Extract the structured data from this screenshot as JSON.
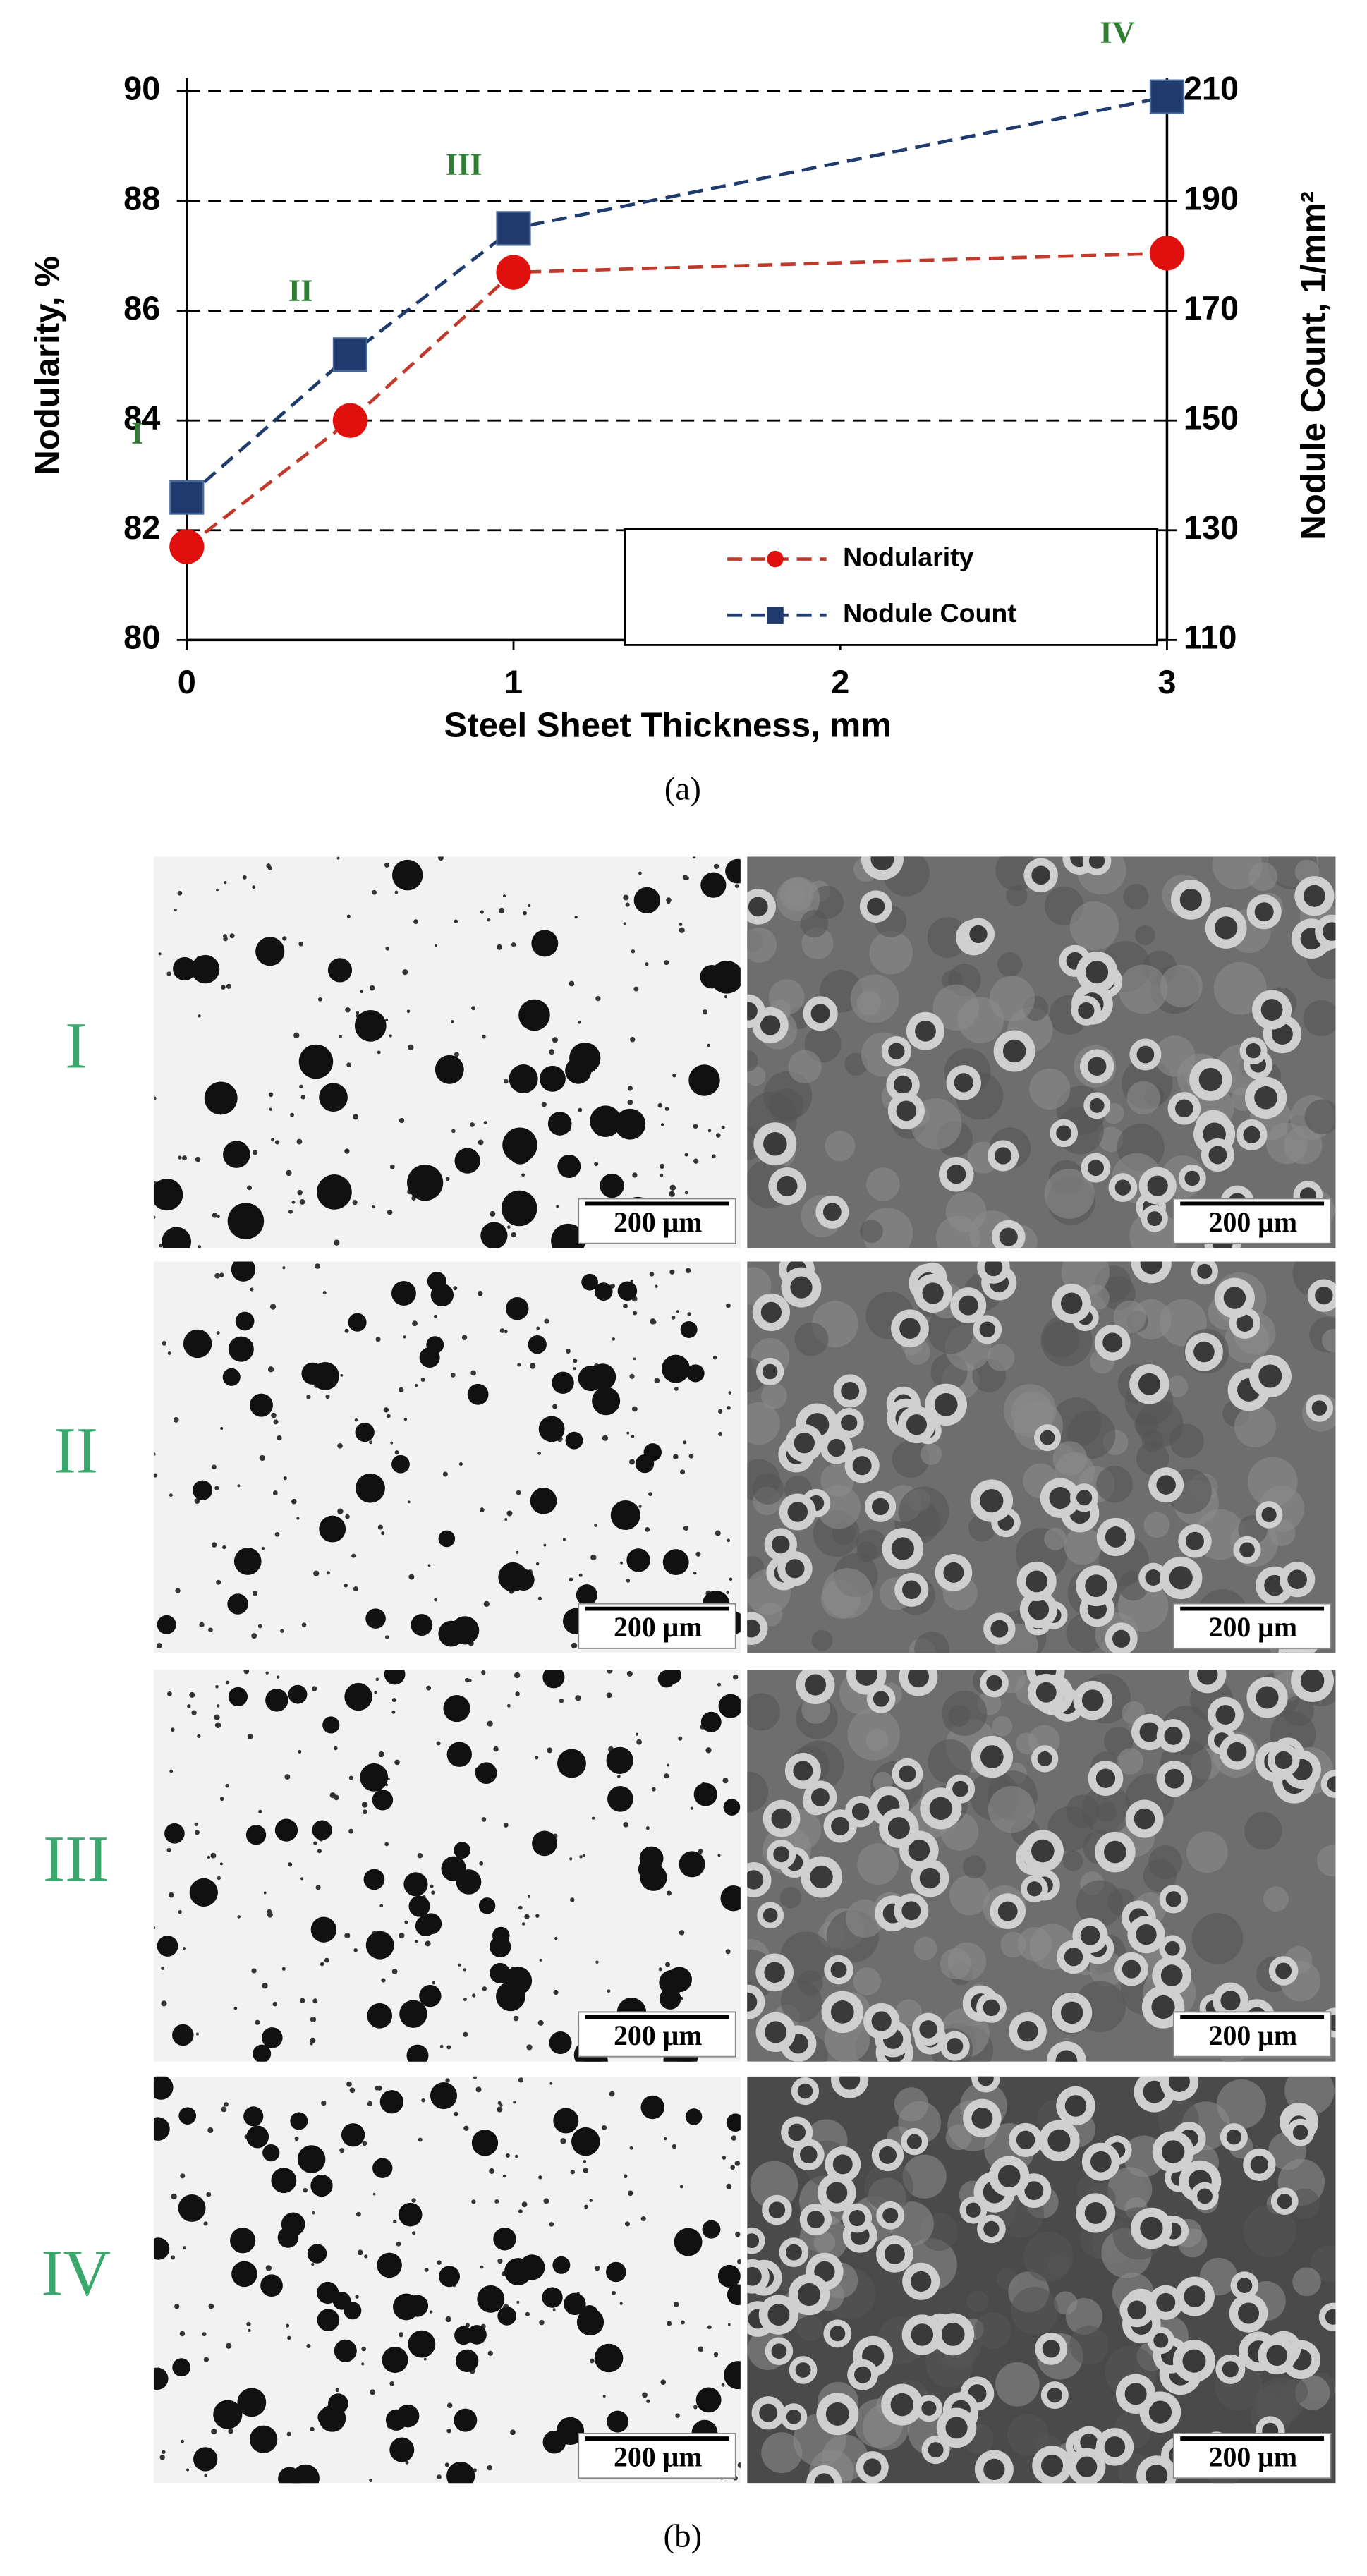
{
  "chart_data": {
    "type": "line",
    "x_label": "Steel Sheet Thickness, mm",
    "y_label": "Nodularity, %",
    "y2_label": "Nodule Count, 1/mm²",
    "x": [
      0,
      0.5,
      1,
      3
    ],
    "xlim": [
      0,
      3
    ],
    "xticks": [
      0,
      1,
      2,
      3
    ],
    "ylim": [
      80,
      90
    ],
    "yticks": [
      80,
      82,
      84,
      86,
      88,
      90
    ],
    "y2lim": [
      110,
      210
    ],
    "y2ticks": [
      110,
      130,
      150,
      170,
      190,
      210
    ],
    "grid": true,
    "legend": "lower right",
    "series": [
      {
        "name": "Nodularity",
        "color": "#e0100f",
        "line_color": "#c0392b",
        "marker": "circle",
        "values": [
          81.7,
          84,
          86.7,
          87.05
        ]
      },
      {
        "name": "Nodule Count",
        "color": "#1f3b6e",
        "line_color": "#1f3b6e",
        "marker": "square",
        "axis": "y2",
        "values": [
          136,
          162,
          185,
          209
        ]
      }
    ],
    "annotations": [
      "I",
      "II",
      "III",
      "IV"
    ]
  },
  "figure": {
    "caption_a": "(a)",
    "caption_b": "(b)",
    "micrographs": [
      {
        "label": "I",
        "scale_bars": [
          "200 μm",
          "200 μm"
        ]
      },
      {
        "label": "II",
        "scale_bars": [
          "200 μm",
          "200 μm"
        ]
      },
      {
        "label": "III",
        "scale_bars": [
          "200 μm",
          "200 μm"
        ]
      },
      {
        "label": "IV",
        "scale_bars": [
          "200 μm",
          "200 μm"
        ]
      }
    ]
  }
}
